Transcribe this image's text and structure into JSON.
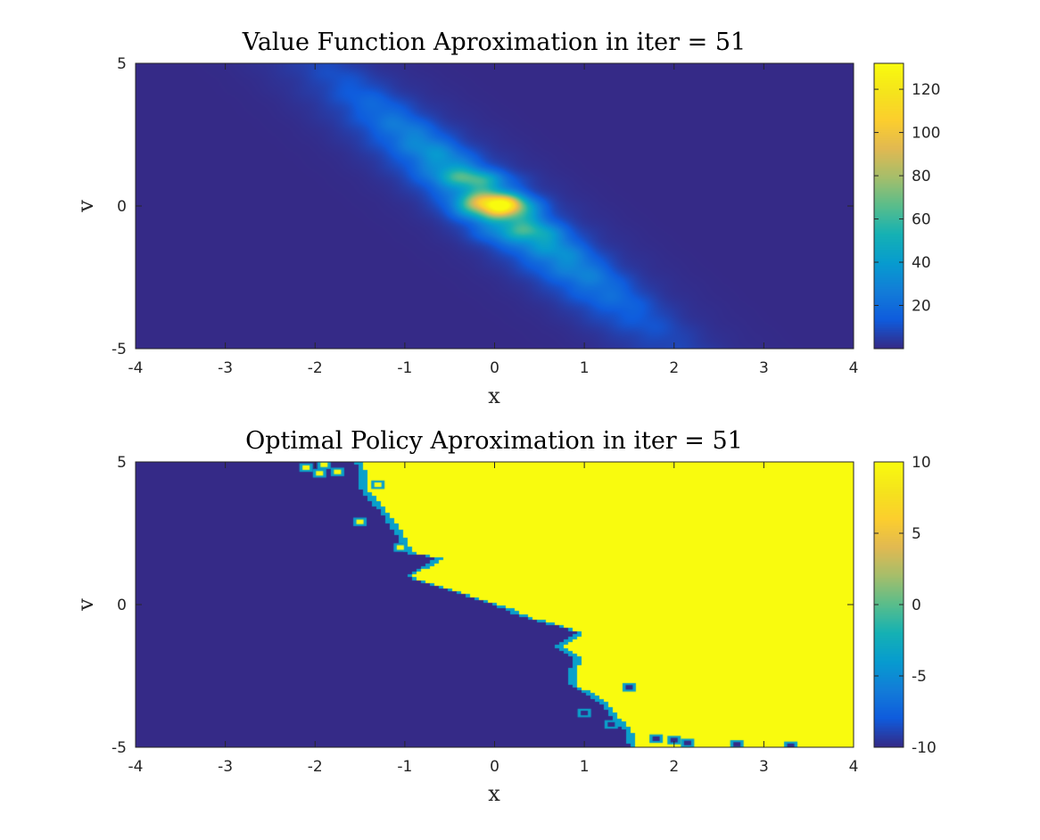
{
  "chart_data": [
    {
      "type": "heatmap",
      "title": "Value Function Aproximation in iter = 51",
      "xlabel": "x",
      "ylabel": "v",
      "xlim": [
        -4,
        4
      ],
      "ylim": [
        -5,
        5
      ],
      "xticks": [
        "-4",
        "-3",
        "-2",
        "-1",
        "0",
        "1",
        "2",
        "3",
        "4"
      ],
      "yticks": [
        "-5",
        "0",
        "5"
      ],
      "colorbar": {
        "range": [
          0,
          132
        ],
        "ticks": [
          "20",
          "40",
          "60",
          "80",
          "100",
          "120"
        ],
        "colormap": "parula"
      },
      "field": {
        "description_values": "anisotropic bump centered at x=0, v=0 with peak ~132, elongated along v = -2.6x direction, ridges near v=1 and v=-1",
        "peak": 132,
        "center": [
          0,
          0
        ]
      }
    },
    {
      "type": "heatmap",
      "title": "Optimal Policy Aproximation in iter = 51",
      "xlabel": "x",
      "ylabel": "v",
      "xlim": [
        -4,
        4
      ],
      "ylim": [
        -5,
        5
      ],
      "xticks": [
        "-4",
        "-3",
        "-2",
        "-1",
        "0",
        "1",
        "2",
        "3",
        "4"
      ],
      "yticks": [
        "-5",
        "0",
        "5"
      ],
      "colorbar": {
        "range": [
          -10,
          10
        ],
        "ticks": [
          "-10",
          "-5",
          "0",
          "5",
          "10"
        ],
        "colormap": "parula"
      },
      "boundary": {
        "low_value": -10,
        "high_value": 10,
        "points_x_at_v": [
          [
            -1.5,
            5
          ],
          [
            -1.45,
            4.0
          ],
          [
            -1.2,
            3.1
          ],
          [
            -1.05,
            2.4
          ],
          [
            -0.95,
            1.8
          ],
          [
            -0.6,
            1.6
          ],
          [
            -0.95,
            1.0
          ],
          [
            -0.9,
            0.9
          ],
          [
            -0.5,
            0.5
          ],
          [
            0.0,
            0.0
          ],
          [
            0.4,
            -0.5
          ],
          [
            0.75,
            -0.8
          ],
          [
            0.95,
            -1.0
          ],
          [
            0.7,
            -1.5
          ],
          [
            0.95,
            -1.9
          ],
          [
            0.85,
            -2.4
          ],
          [
            0.9,
            -2.9
          ],
          [
            1.2,
            -3.4
          ],
          [
            1.35,
            -4.0
          ],
          [
            1.5,
            -4.5
          ],
          [
            1.55,
            -5
          ]
        ]
      }
    }
  ]
}
